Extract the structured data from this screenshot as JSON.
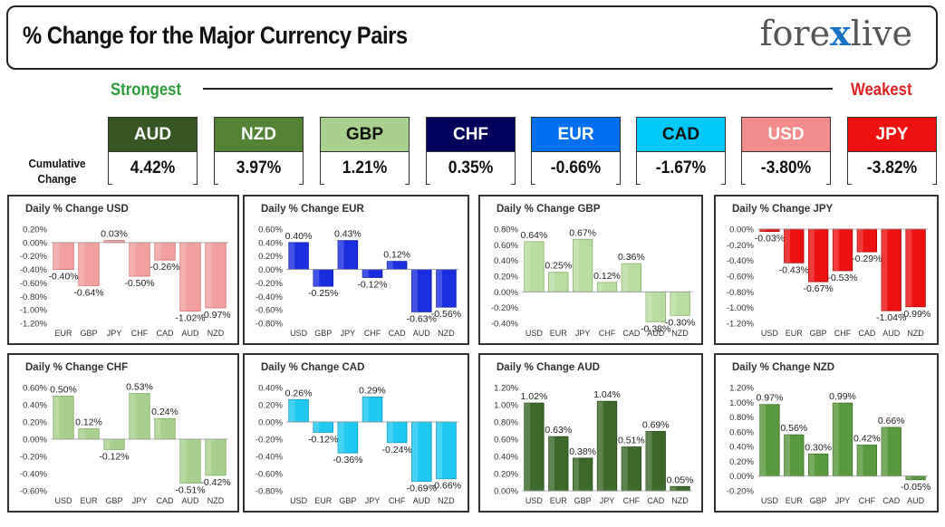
{
  "header": {
    "title": "% Change for the Major Currency Pairs",
    "logo_left": "fore",
    "logo_x": "x",
    "logo_right": "live"
  },
  "ranking": {
    "strongest": "Strongest",
    "weakest": "Weakest",
    "cumulative_label": "Cumulative Change"
  },
  "currencies": [
    {
      "name": "AUD",
      "value": "4.42%",
      "bg": "#375623",
      "color": "#ffffff"
    },
    {
      "name": "NZD",
      "value": "3.97%",
      "bg": "#548235",
      "color": "#ffffff"
    },
    {
      "name": "GBP",
      "value": "1.21%",
      "bg": "#a9d08e",
      "color": "#111111"
    },
    {
      "name": "CHF",
      "value": "0.35%",
      "bg": "#00005c",
      "color": "#ffffff"
    },
    {
      "name": "EUR",
      "value": "-0.66%",
      "bg": "#0070f0",
      "color": "#ffffff"
    },
    {
      "name": "CAD",
      "value": "-1.67%",
      "bg": "#00c8f8",
      "color": "#111111"
    },
    {
      "name": "USD",
      "value": "-3.80%",
      "bg": "#f28b8b",
      "color": "#ffffff"
    },
    {
      "name": "JPY",
      "value": "-3.82%",
      "bg": "#ee1111",
      "color": "#ffffff"
    }
  ],
  "chart_data": [
    {
      "type": "bar",
      "title": "Daily % Change USD",
      "color": "#f2a0a0",
      "color_dark": "#d26a6a",
      "categories": [
        "EUR",
        "GBP",
        "JPY",
        "CHF",
        "CAD",
        "AUD",
        "NZD"
      ],
      "values": [
        -0.4,
        -0.64,
        0.03,
        -0.5,
        -0.26,
        -1.02,
        -0.97
      ],
      "labels": [
        "-0.40%",
        "-0.64%",
        "0.03%",
        "-0.50%",
        "-0.26%",
        "-1.02%",
        "-0.97%"
      ],
      "ylim": [
        -1.2,
        0.2
      ],
      "yticks": [
        0.2,
        0.0,
        -0.2,
        -0.4,
        -0.6,
        -0.8,
        -1.0,
        -1.2
      ],
      "ytick_labels": [
        "0.20%",
        "0.00%",
        "-0.20%",
        "-0.40%",
        "-0.60%",
        "-0.80%",
        "-1.00%",
        "-1.20%"
      ]
    },
    {
      "type": "bar",
      "title": "Daily % Change EUR",
      "color": "#1a2ee0",
      "color_dark": "#0a18a8",
      "categories": [
        "USD",
        "GBP",
        "JPY",
        "CHF",
        "CAD",
        "AUD",
        "NZD"
      ],
      "values": [
        0.4,
        -0.25,
        0.43,
        -0.12,
        0.12,
        -0.63,
        -0.56
      ],
      "labels": [
        "0.40%",
        "-0.25%",
        "0.43%",
        "-0.12%",
        "0.12%",
        "-0.63%",
        "-0.56%"
      ],
      "ylim": [
        -0.8,
        0.6
      ],
      "yticks": [
        0.6,
        0.4,
        0.2,
        0.0,
        -0.2,
        -0.4,
        -0.6,
        -0.8
      ],
      "ytick_labels": [
        "0.60%",
        "0.40%",
        "0.20%",
        "0.00%",
        "-0.20%",
        "-0.40%",
        "-0.60%",
        "-0.80%"
      ]
    },
    {
      "type": "bar",
      "title": "Daily % Change GBP",
      "color": "#b9dca0",
      "color_dark": "#86b067",
      "categories": [
        "USD",
        "EUR",
        "JPY",
        "CHF",
        "CAD",
        "AUD",
        "NZD"
      ],
      "values": [
        0.64,
        0.25,
        0.67,
        0.12,
        0.36,
        -0.38,
        -0.3
      ],
      "labels": [
        "0.64%",
        "0.25%",
        "0.67%",
        "0.12%",
        "0.36%",
        "-0.38%",
        "-0.30%"
      ],
      "ylim": [
        -0.4,
        0.8
      ],
      "yticks": [
        0.8,
        0.6,
        0.4,
        0.2,
        0.0,
        -0.2,
        -0.4
      ],
      "ytick_labels": [
        "0.80%",
        "0.60%",
        "0.40%",
        "0.20%",
        "0.00%",
        "-0.20%",
        "-0.40%"
      ]
    },
    {
      "type": "bar",
      "title": "Daily % Change JPY",
      "color": "#ee1111",
      "color_dark": "#aa0000",
      "categories": [
        "USD",
        "EUR",
        "GBP",
        "CHF",
        "CAD",
        "AUD",
        "NZD"
      ],
      "values": [
        -0.03,
        -0.43,
        -0.67,
        -0.53,
        -0.29,
        -1.04,
        -0.99
      ],
      "labels": [
        "-0.03%",
        "-0.43%",
        "-0.67%",
        "-0.53%",
        "-0.29%",
        "-1.04%",
        "-0.99%"
      ],
      "ylim": [
        -1.2,
        0.0
      ],
      "yticks": [
        0.0,
        -0.2,
        -0.4,
        -0.6,
        -0.8,
        -1.0,
        -1.2
      ],
      "ytick_labels": [
        "0.00%",
        "-0.20%",
        "-0.40%",
        "-0.60%",
        "-0.80%",
        "-1.00%",
        "-1.20%"
      ]
    },
    {
      "type": "bar",
      "title": "Daily % Change CHF",
      "color": "#a9d08e",
      "color_dark": "#78a85a",
      "categories": [
        "USD",
        "EUR",
        "GBP",
        "JPY",
        "CAD",
        "AUD",
        "NZD"
      ],
      "values": [
        0.5,
        0.12,
        -0.12,
        0.53,
        0.24,
        -0.51,
        -0.42
      ],
      "labels": [
        "0.50%",
        "0.12%",
        "-0.12%",
        "0.53%",
        "0.24%",
        "-0.51%",
        "-0.42%"
      ],
      "ylim": [
        -0.6,
        0.6
      ],
      "yticks": [
        0.6,
        0.4,
        0.2,
        0.0,
        -0.2,
        -0.4,
        -0.6
      ],
      "ytick_labels": [
        "0.60%",
        "0.40%",
        "0.20%",
        "0.00%",
        "-0.20%",
        "-0.40%",
        "-0.60%"
      ]
    },
    {
      "type": "bar",
      "title": "Daily % Change CAD",
      "color": "#1ec8f0",
      "color_dark": "#0a98c0",
      "categories": [
        "USD",
        "EUR",
        "GBP",
        "JPY",
        "CHF",
        "AUD",
        "NZD"
      ],
      "values": [
        0.26,
        -0.12,
        -0.36,
        0.29,
        -0.24,
        -0.69,
        -0.66
      ],
      "labels": [
        "0.26%",
        "-0.12%",
        "-0.36%",
        "0.29%",
        "-0.24%",
        "-0.69%",
        "-0.66%"
      ],
      "ylim": [
        -0.8,
        0.4
      ],
      "yticks": [
        0.4,
        0.2,
        0.0,
        -0.2,
        -0.4,
        -0.6,
        -0.8
      ],
      "ytick_labels": [
        "0.40%",
        "0.20%",
        "0.00%",
        "-0.20%",
        "-0.40%",
        "-0.60%",
        "-0.80%"
      ]
    },
    {
      "type": "bar",
      "title": "Daily % Change AUD",
      "color": "#3d6a2a",
      "color_dark": "#244a16",
      "categories": [
        "USD",
        "EUR",
        "GBP",
        "JPY",
        "CHF",
        "CAD",
        "NZD"
      ],
      "values": [
        1.02,
        0.63,
        0.38,
        1.04,
        0.51,
        0.69,
        0.05
      ],
      "labels": [
        "1.02%",
        "0.63%",
        "0.38%",
        "1.04%",
        "0.51%",
        "0.69%",
        "0.05%"
      ],
      "ylim": [
        0.0,
        1.2
      ],
      "yticks": [
        1.2,
        1.0,
        0.8,
        0.6,
        0.4,
        0.2,
        0.0
      ],
      "ytick_labels": [
        "1.20%",
        "1.00%",
        "0.80%",
        "0.60%",
        "0.40%",
        "0.20%",
        "0.00%"
      ]
    },
    {
      "type": "bar",
      "title": "Daily % Change NZD",
      "color": "#5a9a3e",
      "color_dark": "#3a7024",
      "categories": [
        "USD",
        "EUR",
        "GBP",
        "JPY",
        "CHF",
        "CAD",
        "AUD"
      ],
      "values": [
        0.97,
        0.56,
        0.3,
        0.99,
        0.42,
        0.66,
        -0.05
      ],
      "labels": [
        "0.97%",
        "0.56%",
        "0.30%",
        "0.99%",
        "0.42%",
        "0.66%",
        "-0.05%"
      ],
      "ylim": [
        -0.2,
        1.2
      ],
      "yticks": [
        1.2,
        1.0,
        0.8,
        0.6,
        0.4,
        0.2,
        0.0,
        -0.2
      ],
      "ytick_labels": [
        "1.20%",
        "1.00%",
        "0.80%",
        "0.60%",
        "0.40%",
        "0.20%",
        "0.00%",
        "-0.20%"
      ]
    }
  ]
}
